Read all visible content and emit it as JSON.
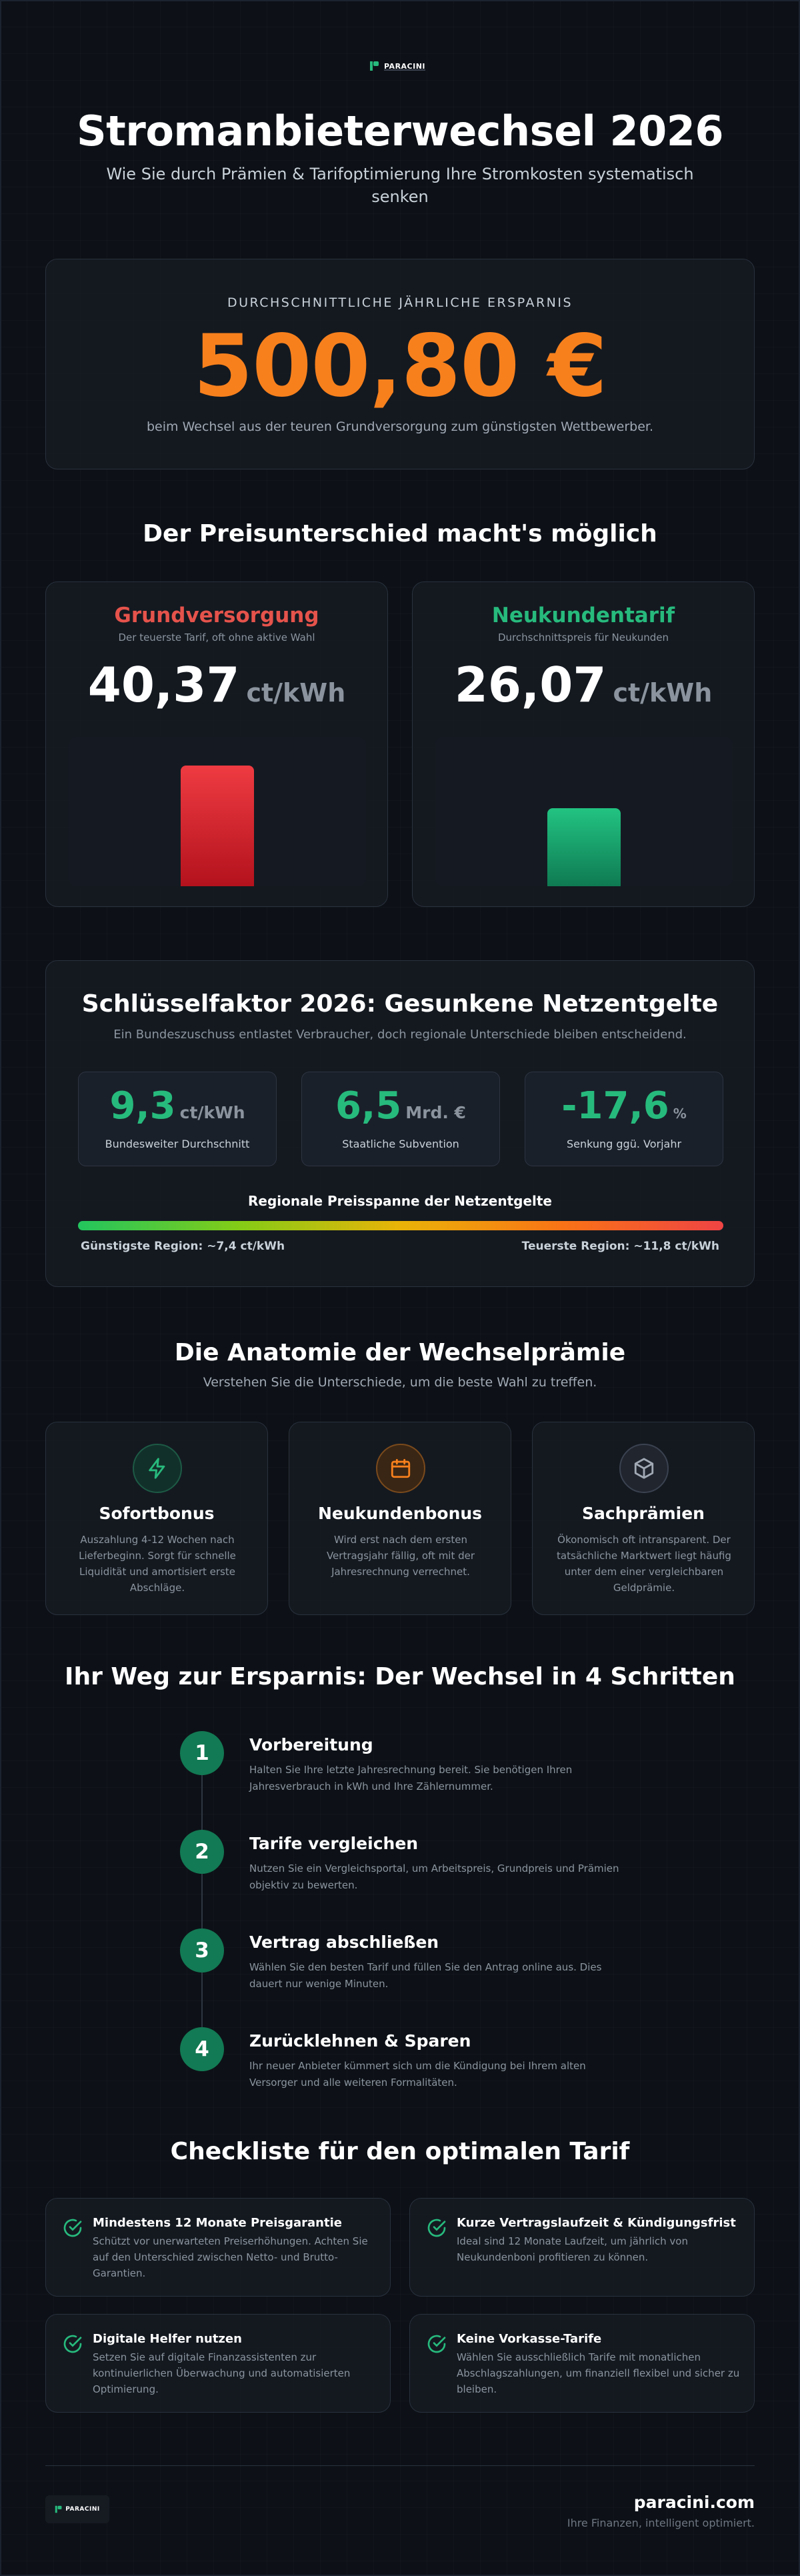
{
  "brand": {
    "logo_text": "PARACINI",
    "footer_name": "paracini.com",
    "footer_tagline": "Ihre Finanzen, intelligent optimiert."
  },
  "header": {
    "title": "Stromanbieterwechsel 2026",
    "subtitle": "Wie Sie durch Prämien & Tarifoptimierung Ihre Stromkosten systematisch senken"
  },
  "hero": {
    "label": "DURCHSCHNITTLICHE JÄHRLICHE ERSPARNIS",
    "value": "500,80 €",
    "note": "beim Wechsel aus der teuren Grundversorgung zum günstigsten Wettbewerber.",
    "accent": "#f7801d"
  },
  "price_section": {
    "title": "Der Preisunterschied macht's möglich",
    "cards": [
      {
        "title": "Grundversorgung",
        "subtitle": "Der teuerste Tarif, oft ohne aktive Wahl",
        "value": "40,37",
        "unit": "ct/kWh",
        "color": "#e5534b"
      },
      {
        "title": "Neukundentarif",
        "subtitle": "Durchschnittspreis für Neukunden",
        "value": "26,07",
        "unit": "ct/kWh",
        "color": "#27ba7d"
      }
    ]
  },
  "chart_data": {
    "type": "bar",
    "categories": [
      "Grundversorgung",
      "Neukundentarif"
    ],
    "values": [
      40.37,
      26.07
    ],
    "ylim": [
      0,
      50
    ],
    "colors": [
      "#e5534b",
      "#1fa86f"
    ]
  },
  "netz": {
    "title": "Schlüsselfaktor 2026: Gesunkene Netzentgelte",
    "subtitle": "Ein Bundeszuschuss entlastet Verbraucher, doch regionale Unterschiede bleiben entscheidend.",
    "stats": [
      {
        "value": "9,3",
        "unit": "ct/kWh",
        "label": "Bundesweiter Durchschnitt"
      },
      {
        "value": "6,5",
        "unit": "Mrd. €",
        "label": "Staatliche Subvention"
      },
      {
        "value": "-17,6",
        "unit": "%",
        "label": "Senkung ggü. Vorjahr"
      }
    ],
    "range_title": "Regionale Preisspanne der Netzentgelte",
    "range_low": "Günstigste Region: ~7,4 ct/kWh",
    "range_high": "Teuerste Region: ~11,8 ct/kWh"
  },
  "bonus_section": {
    "title": "Die Anatomie der Wechselprämie",
    "subtitle": "Verstehen Sie die Unterschiede, um die beste Wahl zu treffen.",
    "cards": [
      {
        "icon": "lightning-icon",
        "title": "Sofortbonus",
        "text": "Auszahlung 4-12 Wochen nach Lieferbeginn. Sorgt für schnelle Liquidität und amortisiert erste Abschläge.",
        "color": "#27ba7d"
      },
      {
        "icon": "calendar-icon",
        "title": "Neukundenbonus",
        "text": "Wird erst nach dem ersten Vertragsjahr fällig, oft mit der Jahresrechnung verrechnet.",
        "color": "#f7801d"
      },
      {
        "icon": "box-icon",
        "title": "Sachprämien",
        "text": "Ökonomisch oft intransparent. Der tatsächliche Marktwert liegt häufig unter dem einer vergleichbaren Geldprämie.",
        "color": "#8b949e"
      }
    ]
  },
  "steps_section": {
    "title": "Ihr Weg zur Ersparnis: Der Wechsel in 4 Schritten",
    "steps": [
      {
        "num": "1",
        "title": "Vorbereitung",
        "text": "Halten Sie Ihre letzte Jahresrechnung bereit. Sie benötigen Ihren Jahresverbrauch in kWh und Ihre Zählernummer."
      },
      {
        "num": "2",
        "title": "Tarife vergleichen",
        "text": "Nutzen Sie ein Vergleichsportal, um Arbeitspreis, Grundpreis und Prämien objektiv zu bewerten."
      },
      {
        "num": "3",
        "title": "Vertrag abschließen",
        "text": "Wählen Sie den besten Tarif und füllen Sie den Antrag online aus. Dies dauert nur wenige Minuten."
      },
      {
        "num": "4",
        "title": "Zurücklehnen & Sparen",
        "text": "Ihr neuer Anbieter kümmert sich um die Kündigung bei Ihrem alten Versorger und alle weiteren Formalitäten."
      }
    ]
  },
  "checklist": {
    "title": "Checkliste für den optimalen Tarif",
    "items": [
      {
        "title": "Mindestens 12 Monate Preisgarantie",
        "text": "Schützt vor unerwarteten Preiserhöhungen. Achten Sie auf den Unterschied zwischen Netto- und Brutto-Garantien."
      },
      {
        "title": "Kurze Vertragslaufzeit & Kündigungsfrist",
        "text": "Ideal sind 12 Monate Laufzeit, um jährlich von Neukundenboni profitieren zu können."
      },
      {
        "title": "Digitale Helfer nutzen",
        "text": "Setzen Sie auf digitale Finanzassistenten zur kontinuierlichen Überwachung und automatisierten Optimierung."
      },
      {
        "title": "Keine Vorkasse-Tarife",
        "text": "Wählen Sie ausschließlich Tarife mit monatlichen Abschlagszahlungen, um finanziell flexibel und sicher zu bleiben."
      }
    ]
  }
}
